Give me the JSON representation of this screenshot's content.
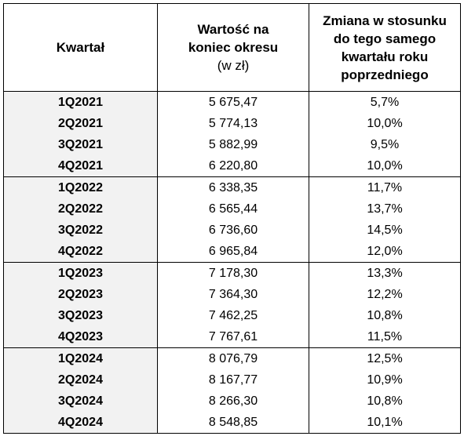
{
  "table": {
    "headers": {
      "col1": "Kwartał",
      "col2_lines": [
        "Wartość na",
        "koniec okresu"
      ],
      "col2_unit": "(w zł)",
      "col3_lines": [
        "Zmiana w stosunku",
        "do tego samego",
        "kwartału roku",
        "poprzedniego"
      ]
    },
    "rows": [
      {
        "quarter": "1Q2021",
        "value": "5 675,47",
        "change": "5,7%"
      },
      {
        "quarter": "2Q2021",
        "value": "5 774,13",
        "change": "10,0%"
      },
      {
        "quarter": "3Q2021",
        "value": "5 882,99",
        "change": "9,5%"
      },
      {
        "quarter": "4Q2021",
        "value": "6 220,80",
        "change": "10,0%"
      },
      {
        "quarter": "1Q2022",
        "value": "6 338,35",
        "change": "11,7%"
      },
      {
        "quarter": "2Q2022",
        "value": "6 565,44",
        "change": "13,7%"
      },
      {
        "quarter": "3Q2022",
        "value": "6 736,60",
        "change": "14,5%"
      },
      {
        "quarter": "4Q2022",
        "value": "6 965,84",
        "change": "12,0%"
      },
      {
        "quarter": "1Q2023",
        "value": "7 178,30",
        "change": "13,3%"
      },
      {
        "quarter": "2Q2023",
        "value": "7 364,30",
        "change": "12,2%"
      },
      {
        "quarter": "3Q2023",
        "value": "7 462,25",
        "change": "10,8%"
      },
      {
        "quarter": "4Q2023",
        "value": "7 767,61",
        "change": "11,5%"
      },
      {
        "quarter": "1Q2024",
        "value": "8 076,79",
        "change": "12,5%"
      },
      {
        "quarter": "2Q2024",
        "value": "8 167,77",
        "change": "10,9%"
      },
      {
        "quarter": "3Q2024",
        "value": "8 266,30",
        "change": "10,8%"
      },
      {
        "quarter": "4Q2024",
        "value": "8 548,85",
        "change": "10,1%"
      }
    ]
  }
}
